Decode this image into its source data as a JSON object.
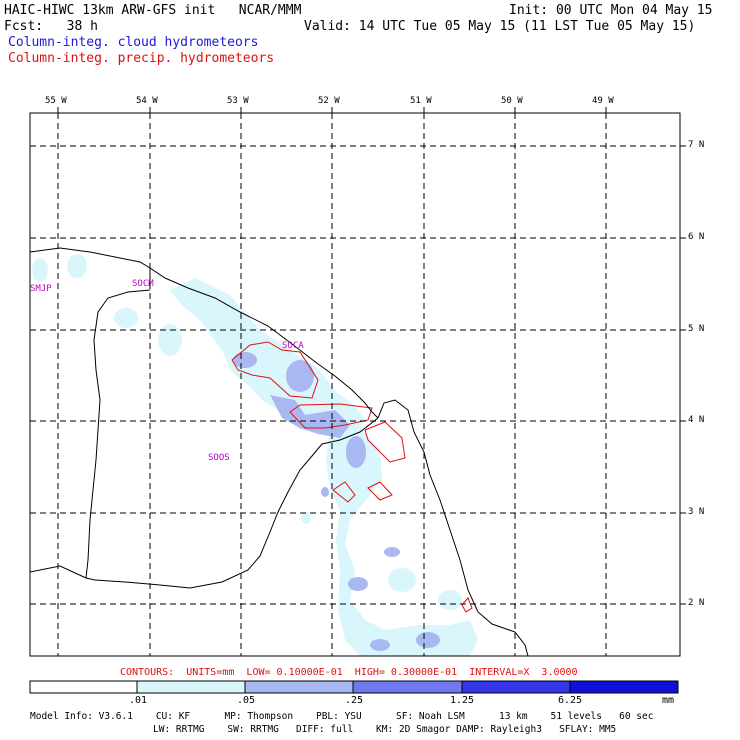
{
  "header": {
    "model_title": "HAIC-HIWC 13km ARW-GFS init   NCAR/MMM",
    "init": "Init: 00 UTC Mon 04 May 15",
    "fcst": "Fcst:   38 h",
    "valid": "Valid: 14 UTC Tue 05 May 15 (11 LST Tue 05 May 15)",
    "field_cloud": "Column-integ. cloud hydrometeors",
    "field_precip": "Column-integ. precip. hydrometeors"
  },
  "map": {
    "lon_labels": [
      "55 W",
      "54 W",
      "53 W",
      "52 W",
      "51 W",
      "50 W",
      "49 W"
    ],
    "lat_labels": [
      "7 N",
      "6 N",
      "5 N",
      "4 N",
      "3 N",
      "2 N"
    ],
    "stations": [
      "SMJP",
      "SOCM",
      "SOCA",
      "SOOS"
    ]
  },
  "contour_info": "CONTOURS:  UNITS=mm  LOW= 0.10000E-01  HIGH= 0.30000E-01  INTERVAL=X  3.0000",
  "colorbar": {
    "labels": [
      ".01",
      ".05",
      ".25",
      "1.25",
      "6.25"
    ],
    "units": "mm",
    "colors": [
      "#ffffff",
      "#d8f6fb",
      "#aab8f2",
      "#6f78ee",
      "#3434e8",
      "#1010dc"
    ]
  },
  "footer": {
    "line1": "Model Info: V3.6.1    CU: KF      MP: Thompson    PBL: YSU      SF: Noah LSM      13 km    51 levels   60 sec",
    "line2": "LW: RRTMG    SW: RRTMG   DIFF: full    KM: 2D Smagor DAMP: Rayleigh3   SFLAY: MM5"
  }
}
